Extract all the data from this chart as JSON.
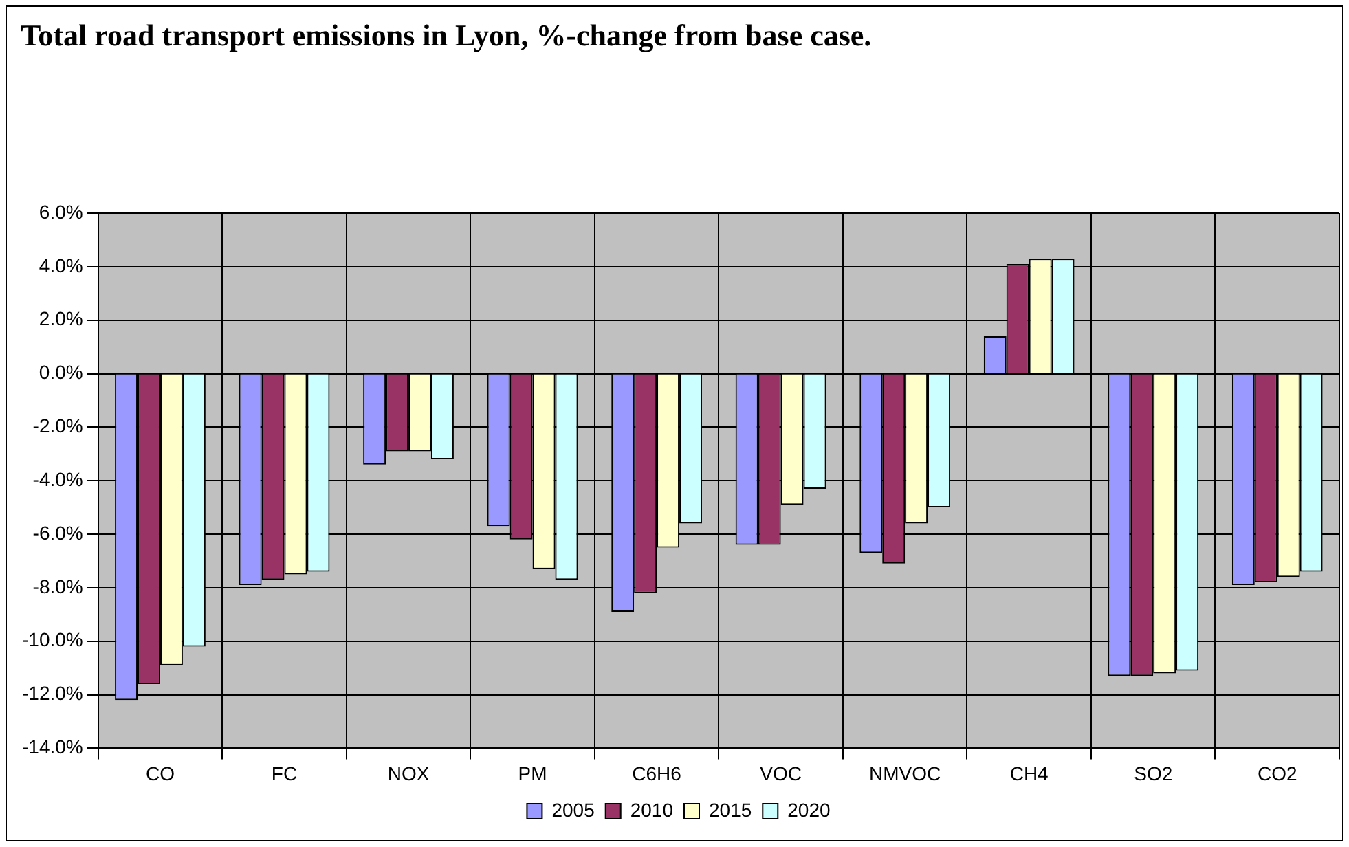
{
  "chart_data": {
    "type": "bar",
    "title": "Total road transport emissions in Lyon, %-change from base case.",
    "categories": [
      "CO",
      "FC",
      "NOX",
      "PM",
      "C6H6",
      "VOC",
      "NMVOC",
      "CH4",
      "SO2",
      "CO2"
    ],
    "series": [
      {
        "name": "2005",
        "color": "#9999ff",
        "values": [
          -12.2,
          -7.9,
          -3.4,
          -5.7,
          -8.9,
          -6.4,
          -6.7,
          1.4,
          -11.3,
          -7.9
        ]
      },
      {
        "name": "2010",
        "color": "#993366",
        "values": [
          -11.6,
          -7.7,
          -2.9,
          -6.2,
          -8.2,
          -6.4,
          -7.1,
          4.1,
          -11.3,
          -7.8
        ]
      },
      {
        "name": "2015",
        "color": "#ffffcc",
        "values": [
          -10.9,
          -7.5,
          -2.9,
          -7.3,
          -6.5,
          -4.9,
          -5.6,
          4.3,
          -11.2,
          -7.6
        ]
      },
      {
        "name": "2020",
        "color": "#ccffff",
        "values": [
          -10.2,
          -7.4,
          -3.2,
          -7.7,
          -5.6,
          -4.3,
          -5.0,
          4.3,
          -11.1,
          -7.4
        ]
      }
    ],
    "ylim": [
      -14,
      6
    ],
    "yticks": [
      {
        "value": 6,
        "label": "6.0%"
      },
      {
        "value": 4,
        "label": "4.0%"
      },
      {
        "value": 2,
        "label": "2.0%"
      },
      {
        "value": 0,
        "label": "0.0%"
      },
      {
        "value": -2,
        "label": "-2.0%"
      },
      {
        "value": -4,
        "label": "-4.0%"
      },
      {
        "value": -6,
        "label": "-6.0%"
      },
      {
        "value": -8,
        "label": "-8.0%"
      },
      {
        "value": -10,
        "label": "-10.0%"
      },
      {
        "value": -12,
        "label": "-12.0%"
      },
      {
        "value": -14,
        "label": "-14.0%"
      }
    ],
    "grid": true,
    "legend": "bottom"
  }
}
